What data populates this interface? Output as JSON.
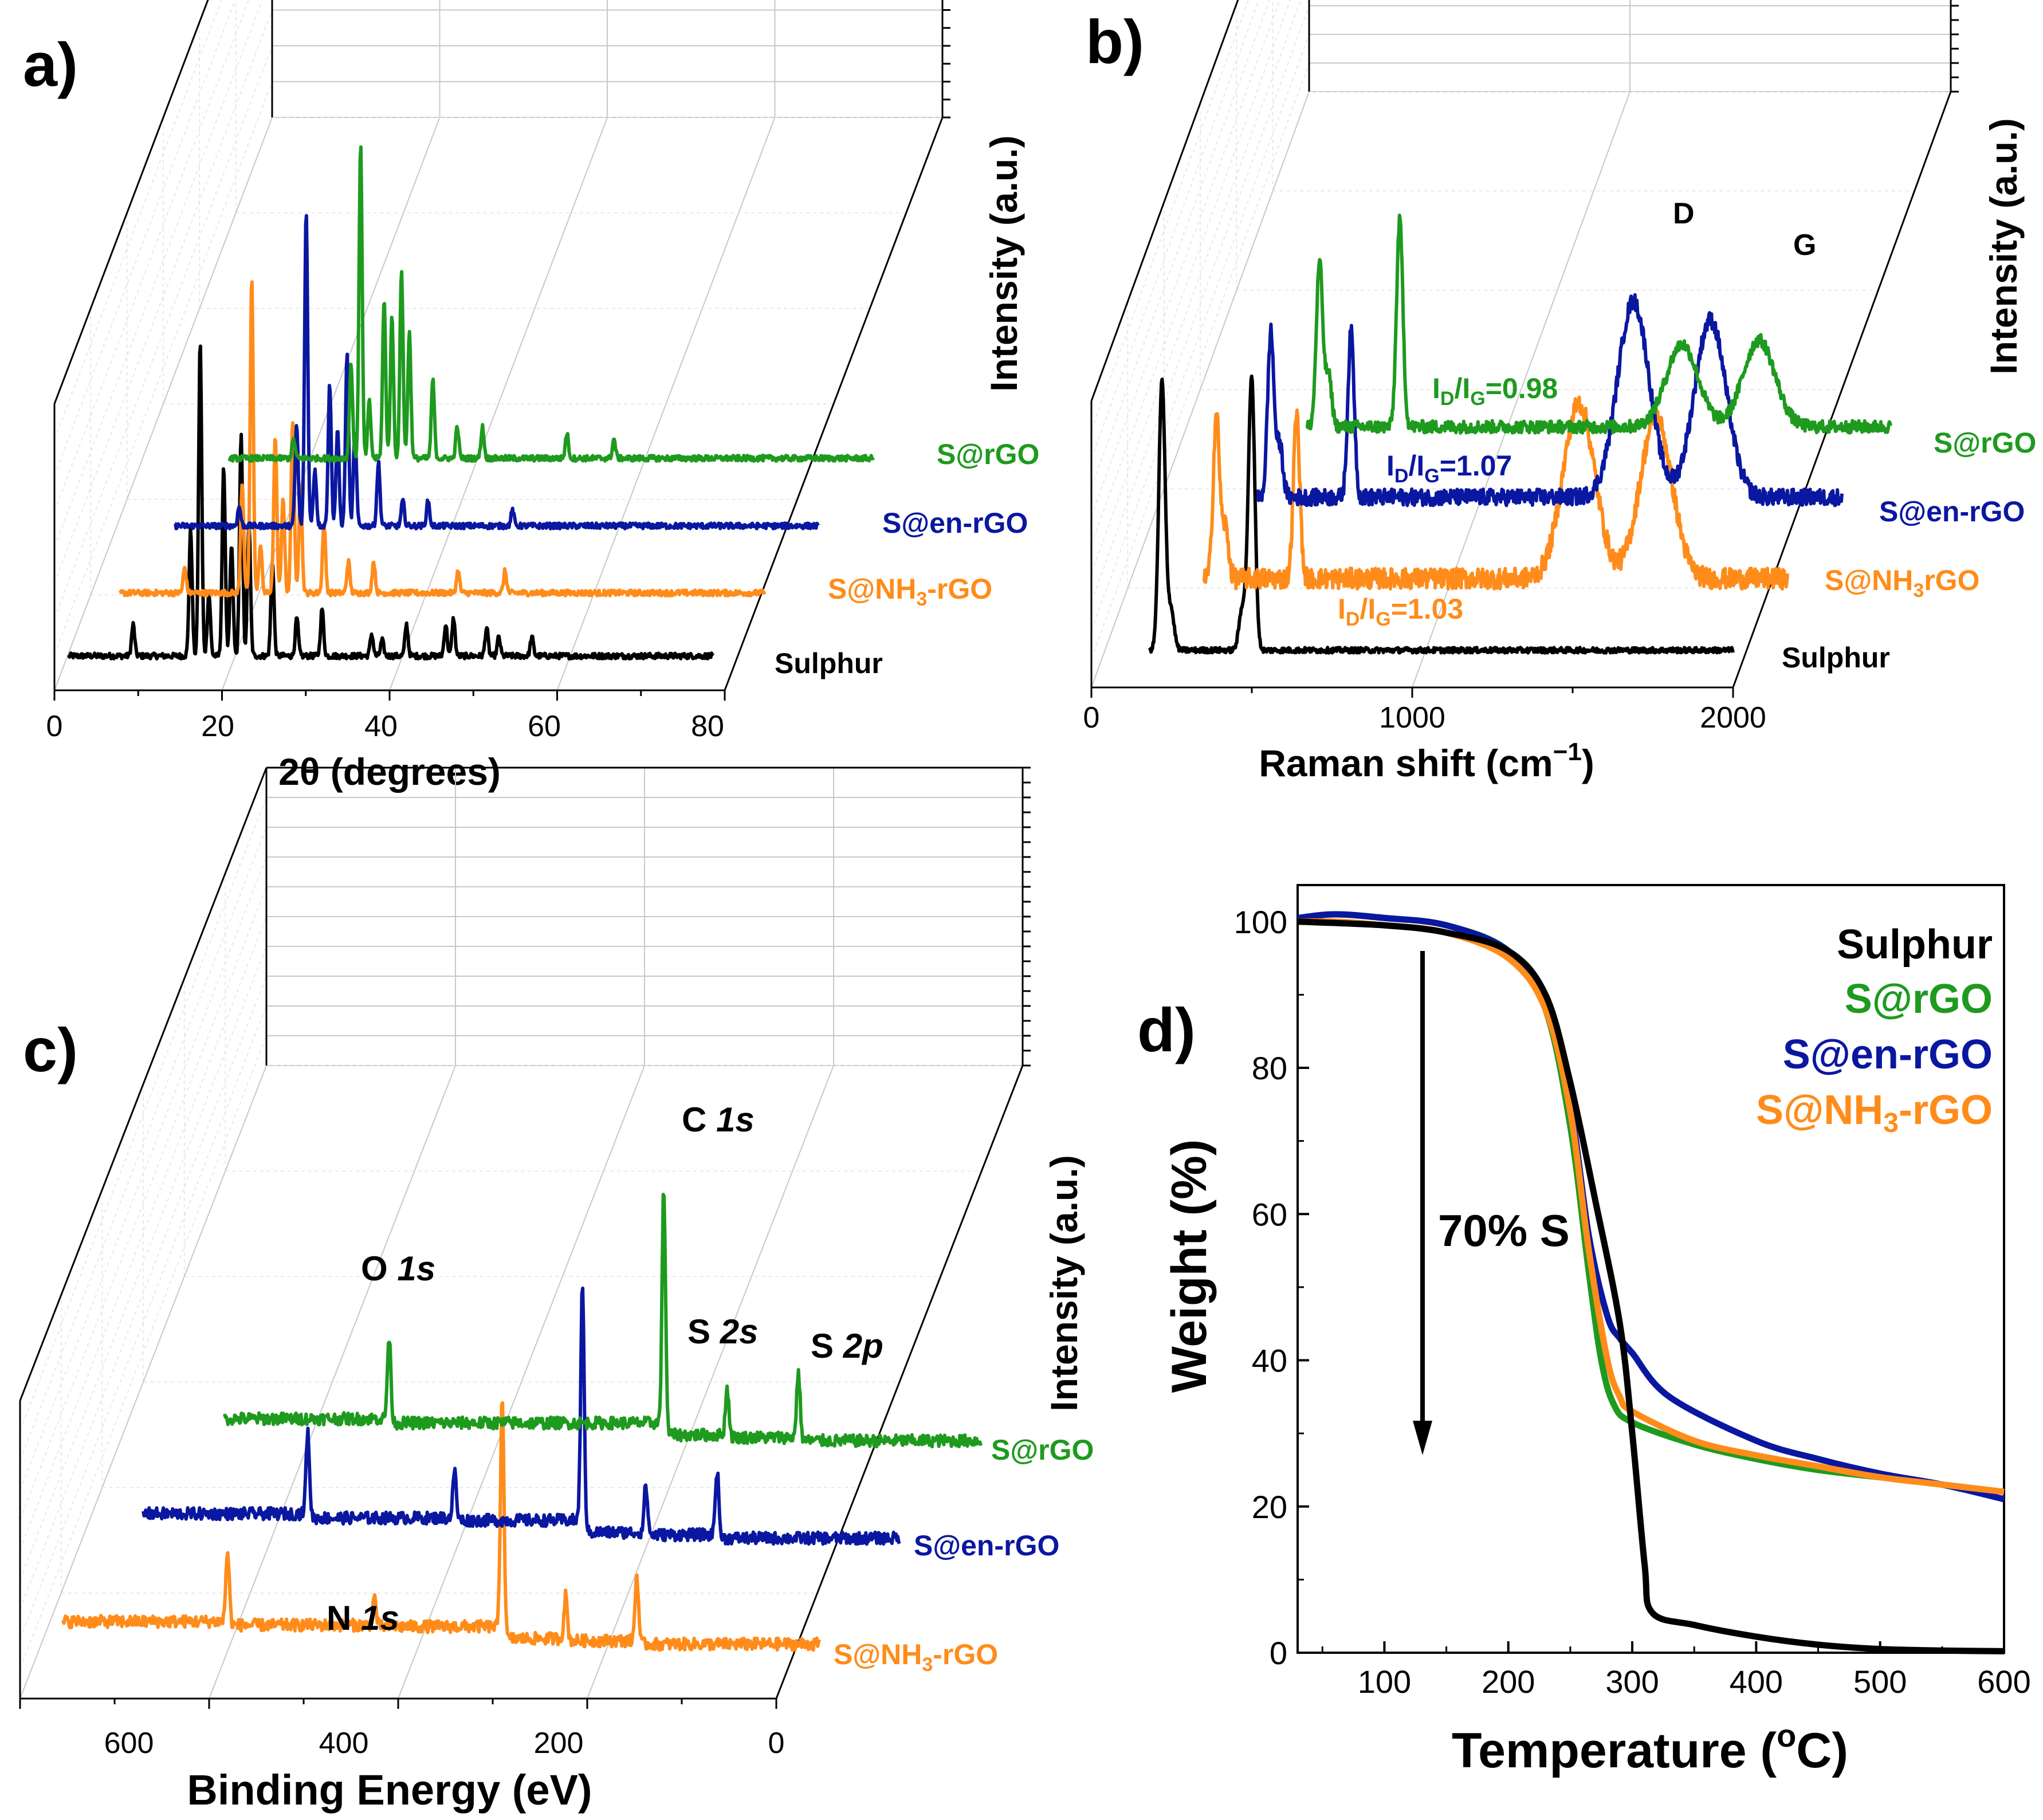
{
  "figure": {
    "panel_letters": [
      "a)",
      "b)",
      "c)",
      "d)"
    ]
  },
  "chart_data": [
    {
      "panel": "a)",
      "type": "line",
      "style": "3D waterfall",
      "title": "",
      "xlabel": "2θ (degrees)",
      "ylabel": "Intensity (a.u.)",
      "xlim": [
        0,
        85
      ],
      "xticks": [
        "0",
        "20",
        "40",
        "60",
        "80"
      ],
      "series": [
        {
          "name": "Sulphur",
          "color": "#000000",
          "peaks": [
            [
              15.4,
              0.1
            ],
            [
              22.0,
              0.4
            ],
            [
              23.1,
              1.0
            ],
            [
              24.1,
              0.2
            ],
            [
              25.8,
              0.6
            ],
            [
              26.7,
              0.35
            ],
            [
              27.8,
              0.7
            ],
            [
              28.7,
              0.42
            ],
            [
              31.4,
              0.3
            ],
            [
              34.2,
              0.12
            ],
            [
              37.1,
              0.15
            ],
            [
              42.8,
              0.07
            ],
            [
              44.0,
              0.05
            ],
            [
              46.8,
              0.1
            ],
            [
              51.3,
              0.1
            ],
            [
              52.2,
              0.12
            ],
            [
              56.0,
              0.09
            ],
            [
              57.4,
              0.06
            ],
            [
              61.2,
              0.06
            ]
          ],
          "xrange": [
            8,
            82
          ]
        },
        {
          "name": "S@NH3-rGO",
          "label_main": "S@NH",
          "label_sub": "3",
          "label_tail": "-rGO",
          "color": "#ff8c1a",
          "peaks": [
            [
              15.4,
              0.08
            ],
            [
              22.0,
              0.35
            ],
            [
              23.1,
              1.0
            ],
            [
              24.1,
              0.15
            ],
            [
              25.8,
              0.5
            ],
            [
              26.7,
              0.3
            ],
            [
              27.8,
              0.55
            ],
            [
              28.7,
              0.35
            ],
            [
              31.4,
              0.22
            ],
            [
              34.2,
              0.1
            ],
            [
              37.1,
              0.1
            ],
            [
              46.8,
              0.07
            ],
            [
              52.2,
              0.07
            ]
          ],
          "xrange": [
            8,
            82
          ]
        },
        {
          "name": "S@en-rGO",
          "color": "#0a17a0",
          "peaks": [
            [
              15.4,
              0.06
            ],
            [
              22.0,
              0.32
            ],
            [
              23.1,
              1.0
            ],
            [
              24.1,
              0.18
            ],
            [
              25.8,
              0.45
            ],
            [
              26.7,
              0.3
            ],
            [
              27.8,
              0.55
            ],
            [
              28.7,
              0.3
            ],
            [
              31.4,
              0.2
            ],
            [
              34.2,
              0.08
            ],
            [
              37.1,
              0.08
            ],
            [
              46.8,
              0.05
            ]
          ],
          "xrange": [
            8,
            82
          ]
        },
        {
          "name": "S@rGO",
          "color": "#1e9a1e",
          "peaks": [
            [
              15.4,
              0.06
            ],
            [
              22.0,
              0.3
            ],
            [
              23.1,
              1.0
            ],
            [
              24.1,
              0.18
            ],
            [
              25.8,
              0.5
            ],
            [
              26.7,
              0.45
            ],
            [
              27.8,
              0.6
            ],
            [
              28.7,
              0.4
            ],
            [
              31.4,
              0.25
            ],
            [
              34.2,
              0.1
            ],
            [
              37.1,
              0.1
            ],
            [
              46.8,
              0.08
            ],
            [
              52.2,
              0.06
            ]
          ],
          "xrange": [
            8,
            82
          ]
        }
      ]
    },
    {
      "panel": "b)",
      "type": "line",
      "style": "3D waterfall",
      "title": "",
      "xlabel": "Raman shift (cm",
      "xlabel_sup": "−1",
      "xlabel_tail": ")",
      "ylabel": "Intensity (a.u.)",
      "xlim": [
        0,
        2000
      ],
      "xticks": [
        "0",
        "1000",
        "2000"
      ],
      "annotations": {
        "D": "D",
        "G": "G",
        "ratio_green": {
          "main": "I",
          "sub1": "D",
          "mid": "/I",
          "sub2": "G",
          "tail": "=0.98"
        },
        "ratio_blue": {
          "main": "I",
          "sub1": "D",
          "mid": "/I",
          "sub2": "G",
          "tail": "=1.07"
        },
        "ratio_orange": {
          "main": "I",
          "sub1": "D",
          "mid": "/I",
          "sub2": "G",
          "tail": "=1.03"
        }
      },
      "series": [
        {
          "name": "Sulphur",
          "color": "#000000",
          "xrange": [
            180,
            2000
          ],
          "peaks": [
            [
              152,
              0.0
            ],
            [
              220,
              1.0
            ],
            [
              248,
              0.15
            ],
            [
              470,
              0.15
            ],
            [
              490,
              0.1
            ],
            [
              500,
              0.95
            ]
          ]
        },
        {
          "name": "S@NH3rGO",
          "label_main": "S@NH",
          "label_sub": "3",
          "label_tail": "rGO",
          "color": "#ff8c1a",
          "xrange": [
            180,
            2000
          ],
          "peaks": [
            [
              220,
              0.8
            ],
            [
              248,
              0.25
            ],
            [
              470,
              0.8
            ],
            [
              1350,
              0.85
            ],
            [
              1590,
              0.78
            ]
          ],
          "noise": 0.1
        },
        {
          "name": "S@en-rGO",
          "color": "#0a17a0",
          "xrange": [
            180,
            2000
          ],
          "peaks": [
            [
              220,
              0.8
            ],
            [
              248,
              0.25
            ],
            [
              470,
              0.8
            ],
            [
              1350,
              0.95
            ],
            [
              1590,
              0.86
            ]
          ],
          "noise": 0.08
        },
        {
          "name": "S@rGO",
          "color": "#1e9a1e",
          "xrange": [
            180,
            2000
          ],
          "peaks": [
            [
              220,
              0.8
            ],
            [
              248,
              0.25
            ],
            [
              470,
              1.0
            ],
            [
              1350,
              0.4
            ],
            [
              1590,
              0.42
            ]
          ],
          "noise": 0.06
        }
      ]
    },
    {
      "panel": "c)",
      "type": "line",
      "style": "3D waterfall",
      "title": "",
      "xlabel": "Binding Energy (eV)",
      "ylabel": "Intensity (a.u.)",
      "xlim": [
        680,
        0
      ],
      "xticks": [
        "600",
        "400",
        "200",
        "0"
      ],
      "annotations": {
        "o1s": {
          "main": "O ",
          "ital": "1s"
        },
        "c1s": {
          "main": "C ",
          "ital": "1s"
        },
        "s2s": {
          "main": "S ",
          "ital": "2s"
        },
        "s2p": {
          "main": "S ",
          "ital": "2p"
        },
        "n1s": {
          "main": "N ",
          "ital": "1s"
        }
      },
      "series": [
        {
          "name": "S@NH3-rGO",
          "label_main": "S@NH",
          "label_sub": "3",
          "label_tail": "-rGO",
          "color": "#ff8c1a",
          "peaks": [
            [
              532,
              0.3
            ],
            [
              400,
              0.12
            ],
            [
              285,
              1.0
            ],
            [
              228,
              0.18
            ],
            [
              164,
              0.28
            ]
          ]
        },
        {
          "name": "S@en-rGO",
          "color": "#0a17a0",
          "peaks": [
            [
              532,
              0.35
            ],
            [
              400,
              0.2
            ],
            [
              285,
              1.0
            ],
            [
              228,
              0.2
            ],
            [
              164,
              0.28
            ]
          ]
        },
        {
          "name": "S@rGO",
          "color": "#1e9a1e",
          "peaks": [
            [
              532,
              0.35
            ],
            [
              285,
              1.0
            ],
            [
              228,
              0.2
            ],
            [
              164,
              0.28
            ]
          ]
        }
      ]
    },
    {
      "panel": "d)",
      "type": "line",
      "title": "",
      "xlabel": "Temperature (",
      "xlabel_sup": "o",
      "xlabel_tail": "C)",
      "ylabel": "Weight (%)",
      "xlim": [
        30,
        600
      ],
      "ylim": [
        0,
        105
      ],
      "xticks": [
        "100",
        "200",
        "300",
        "400",
        "500",
        "600"
      ],
      "yticks": [
        "0",
        "20",
        "40",
        "60",
        "80",
        "100"
      ],
      "annotation": "70% S",
      "legend": [
        {
          "text": "Sulphur",
          "color": "#000000"
        },
        {
          "text": "S@rGO",
          "color": "#1e9a1e"
        },
        {
          "text": "S@en-rGO",
          "color": "#0a17a0"
        },
        {
          "main": "S@NH",
          "sub": "3",
          "tail": "-rGO",
          "color": "#ff8c1a"
        }
      ],
      "series": [
        {
          "name": "Sulphur",
          "color": "#000000",
          "x": [
            30,
            100,
            150,
            200,
            230,
            250,
            270,
            290,
            300,
            310,
            316,
            350,
            400,
            450,
            500,
            550,
            600
          ],
          "y": [
            100,
            99.5,
            98.5,
            96,
            90,
            78,
            62,
            45,
            30,
            12,
            5.5,
            3.8,
            2.2,
            1.1,
            0.5,
            0.3,
            0.2
          ]
        },
        {
          "name": "S@rGO",
          "color": "#1e9a1e",
          "x": [
            30,
            60,
            100,
            150,
            200,
            230,
            250,
            265,
            275,
            285,
            300,
            350,
            400,
            450,
            500,
            550,
            600
          ],
          "y": [
            100.5,
            101,
            100.5,
            99.5,
            96,
            88,
            72,
            52,
            40,
            34,
            31.5,
            28.5,
            26.5,
            25,
            24,
            23,
            22
          ]
        },
        {
          "name": "S@en-rGO",
          "color": "#0a17a0",
          "x": [
            30,
            60,
            100,
            150,
            200,
            230,
            250,
            265,
            280,
            290,
            300,
            330,
            400,
            450,
            500,
            550,
            600
          ],
          "y": [
            100.5,
            101,
            100.5,
            99.5,
            96,
            89,
            75,
            57,
            46,
            43,
            41,
            35,
            29,
            26.5,
            24.5,
            23,
            21
          ]
        },
        {
          "name": "S@NH3-rGO",
          "color": "#ff8c1a",
          "x": [
            30,
            60,
            100,
            150,
            200,
            230,
            250,
            265,
            280,
            290,
            300,
            350,
            400,
            450,
            500,
            550,
            600
          ],
          "y": [
            100,
            100,
            99.5,
            98.5,
            95,
            88,
            74,
            55,
            40,
            35,
            33,
            29,
            27,
            25.5,
            24,
            23,
            22
          ]
        }
      ]
    }
  ]
}
